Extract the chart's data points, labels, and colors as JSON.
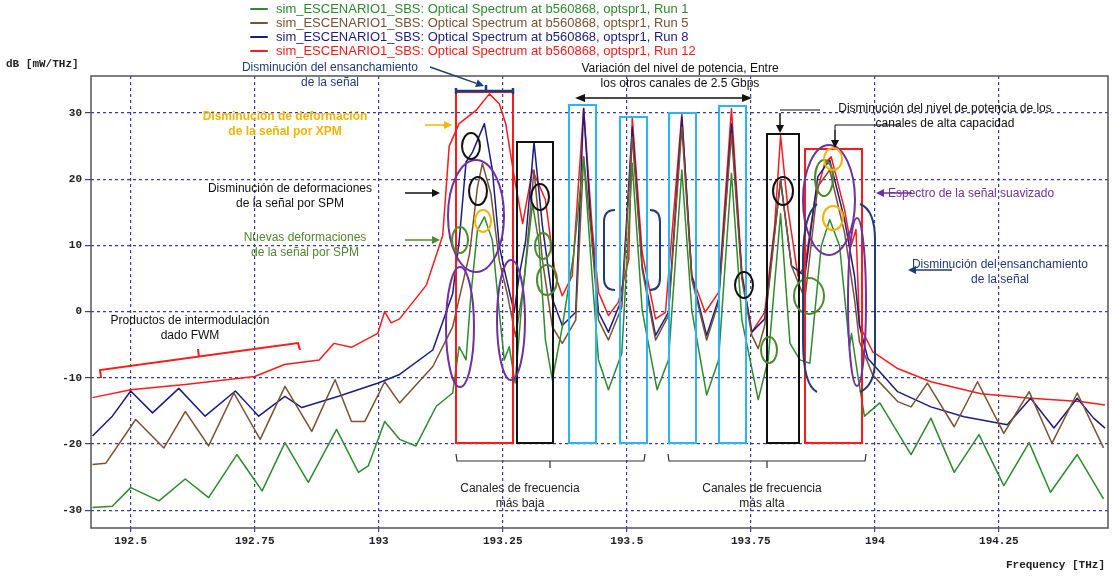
{
  "chart_data": {
    "type": "line",
    "xlabel": "Frequency [THz]",
    "ylabel": "dB [mW/THz]",
    "xlim": [
      192.42,
      194.47
    ],
    "ylim": [
      -32.7,
      35.6
    ],
    "xticks": [
      192.5,
      192.75,
      193,
      193.25,
      193.5,
      193.75,
      194,
      194.25
    ],
    "yticks": [
      -30,
      -20,
      -10,
      0,
      10,
      20,
      30
    ],
    "grid": true,
    "legend": "top left",
    "annotations": [
      "Disminución del ensanchamiento de la señal",
      "Variación del nivel de potencia, Entre los otros canales de 2.5 Gbps",
      "Disminución de deformación de la señal por XPM",
      "Disminución del nivel de potencia de los canales de alta capacidad",
      "Disminución de deformaciones de la señal  por SPM",
      "Espectro de la señal suavizado",
      "Nuevas deformaciones de la señal  por SPM",
      "Disminución del ensanchamiento de la señal",
      "Productos de intermodulación dado FWM",
      "Canales de frecuencia más baja",
      "Canales de frecuencia más alta"
    ],
    "series": [
      {
        "name": "sim_ESCENARIO1_SBS: Optical Spectrum at b560868, optspr1, Run 1",
        "color": "#2e8b2e",
        "x": [
          192.423,
          192.463,
          192.5,
          192.557,
          192.61,
          192.657,
          192.714,
          192.765,
          192.811,
          192.858,
          192.915,
          192.959,
          192.979,
          193.012,
          193.042,
          193.075,
          193.116,
          193.149,
          193.162,
          193.176,
          193.186,
          193.199,
          193.213,
          193.229,
          193.243,
          193.253,
          193.263,
          193.275,
          193.29,
          193.31,
          193.323,
          193.336,
          193.35,
          193.37,
          193.393,
          193.413,
          193.43,
          193.443,
          193.463,
          193.49,
          193.511,
          193.531,
          193.561,
          193.584,
          193.611,
          193.631,
          193.661,
          193.685,
          193.711,
          193.732,
          193.765,
          193.785,
          193.81,
          193.829,
          193.849,
          193.869,
          193.892,
          193.909,
          193.929,
          193.949,
          193.953,
          193.966,
          193.979,
          194.01,
          194.073,
          194.113,
          194.16,
          194.21,
          194.26,
          194.311,
          194.354,
          194.408,
          194.461
        ],
        "values": [
          -29.6,
          -29.4,
          -26.6,
          -28.6,
          -25.3,
          -28.1,
          -21.6,
          -27.1,
          -19.8,
          -25.8,
          -17.8,
          -24.3,
          -23.3,
          -16.6,
          -19.3,
          -20.3,
          -14.3,
          -12.3,
          -5.3,
          -7.3,
          2.7,
          12.3,
          14.3,
          10.8,
          -0.1,
          -7.3,
          -5.3,
          -10.8,
          2.7,
          16.3,
          10.3,
          -4.3,
          -10.3,
          -2.3,
          8.7,
          23.4,
          5.4,
          -7.3,
          -11.8,
          -6.3,
          22.4,
          0.2,
          -11.8,
          -7.3,
          21.4,
          0.2,
          -12.6,
          -7.3,
          20.9,
          -1.3,
          -13.3,
          -7.3,
          14.8,
          -4.8,
          -7.3,
          -7.8,
          9.9,
          13.9,
          9.9,
          -5.3,
          -3.3,
          -9.8,
          -15.8,
          -13.8,
          -21.6,
          -16.1,
          -24.3,
          -18.6,
          -26.3,
          -19.8,
          -27.3,
          -21.6,
          -28.3
        ]
      },
      {
        "name": "sim_ESCENARIO1_SBS: Optical Spectrum at b560868, optspr1, Run 5",
        "color": "#7b5331",
        "x": [
          192.423,
          192.45,
          192.51,
          192.567,
          192.61,
          192.657,
          192.708,
          192.761,
          192.811,
          192.865,
          192.912,
          192.945,
          192.972,
          193.012,
          193.042,
          193.109,
          193.149,
          193.166,
          193.183,
          193.199,
          193.209,
          193.226,
          193.243,
          193.259,
          193.276,
          193.293,
          193.313,
          193.33,
          193.35,
          193.37,
          193.397,
          193.413,
          193.427,
          193.443,
          193.463,
          193.49,
          193.511,
          193.531,
          193.558,
          193.584,
          193.611,
          193.631,
          193.661,
          193.685,
          193.711,
          193.732,
          193.752,
          193.765,
          193.778,
          193.81,
          193.832,
          193.859,
          193.885,
          193.909,
          193.939,
          193.959,
          193.969,
          193.996,
          194.046,
          194.073,
          194.106,
          194.16,
          194.207,
          194.26,
          194.311,
          194.357,
          194.408,
          194.461
        ],
        "values": [
          -23.1,
          -22.9,
          -16.3,
          -20.6,
          -15.1,
          -20.3,
          -12.3,
          -19.3,
          -11.3,
          -18.1,
          -10.3,
          -16.6,
          -16.6,
          -10.6,
          -13.8,
          -8.3,
          -2.3,
          3.2,
          8.7,
          18.8,
          22.4,
          17.8,
          7.7,
          2.7,
          -3.8,
          4.7,
          21.4,
          7.7,
          -2.3,
          -4.8,
          -1.3,
          23.4,
          12.9,
          -1.3,
          -4.3,
          0.7,
          26.4,
          6.4,
          -4.3,
          -0.6,
          27.9,
          4.9,
          -4.3,
          1.4,
          26.9,
          4.9,
          -3.6,
          -5.6,
          -2.1,
          19.9,
          6.9,
          1.9,
          18.9,
          21.4,
          11.9,
          1.9,
          -4.6,
          -9.6,
          -13.6,
          -14.4,
          -10.8,
          -17.4,
          -10.6,
          -18.4,
          -12.1,
          -19.9,
          -12.3,
          -20.6
        ]
      },
      {
        "name": "sim_ESCENARIO1_SBS: Optical Spectrum at b560868, optspr1, Run 8",
        "color": "#1c1c82",
        "x": [
          192.423,
          192.463,
          192.5,
          192.544,
          192.597,
          192.65,
          192.711,
          192.758,
          192.811,
          192.845,
          192.919,
          192.999,
          193.042,
          193.109,
          193.149,
          193.162,
          193.176,
          193.189,
          193.213,
          193.229,
          193.243,
          193.256,
          193.273,
          193.283,
          193.296,
          193.313,
          193.33,
          193.35,
          193.37,
          193.397,
          193.413,
          193.427,
          193.443,
          193.463,
          193.49,
          193.511,
          193.531,
          193.558,
          193.584,
          193.611,
          193.631,
          193.661,
          193.685,
          193.711,
          193.732,
          193.752,
          193.778,
          193.81,
          193.832,
          193.859,
          193.885,
          193.909,
          193.939,
          193.959,
          193.969,
          193.986,
          194.046,
          194.113,
          194.18,
          194.267,
          194.314,
          194.361,
          194.408,
          194.441,
          194.464
        ],
        "values": [
          -18.8,
          -15.8,
          -12,
          -15.3,
          -11.6,
          -15.8,
          -12,
          -15.8,
          -12.8,
          -14.5,
          -12.8,
          -10.8,
          -9.5,
          -5.8,
          2.7,
          10.6,
          22.6,
          24.1,
          28.4,
          21.4,
          9.9,
          5.4,
          -0.1,
          5.4,
          10.6,
          25.6,
          12.9,
          1.9,
          -2.1,
          -0.1,
          30.7,
          13.9,
          -0.1,
          -3.1,
          1.9,
          27.9,
          6.9,
          -3.6,
          -0.1,
          29.4,
          5.4,
          -3.6,
          1.9,
          28.4,
          5.4,
          -3.1,
          -1.1,
          19.9,
          6.9,
          5.4,
          20.4,
          22.9,
          13.9,
          5.4,
          -2.1,
          -7.1,
          -12.1,
          -14.4,
          -15.9,
          -17.1,
          -13.1,
          -17.6,
          -13.1,
          -16.1,
          -17.6
        ]
      },
      {
        "name": "sim_ESCENARIO1_SBS: Optical Spectrum at b560868, optspr1, Run 12",
        "color": "#ff1a1a",
        "x": [
          192.423,
          192.5,
          192.61,
          192.75,
          192.81,
          192.88,
          192.91,
          192.945,
          192.998,
          193.012,
          193.025,
          193.042,
          193.096,
          193.129,
          193.142,
          193.162,
          193.196,
          193.223,
          193.243,
          193.256,
          193.273,
          193.29,
          193.31,
          193.336,
          193.356,
          193.37,
          193.39,
          193.413,
          193.43,
          193.443,
          193.463,
          193.483,
          193.504,
          193.511,
          193.531,
          193.558,
          193.578,
          193.611,
          193.631,
          193.658,
          193.685,
          193.711,
          193.732,
          193.752,
          193.778,
          193.798,
          193.81,
          193.825,
          193.845,
          193.859,
          193.879,
          193.899,
          193.912,
          193.939,
          193.952,
          193.962,
          193.969,
          193.976,
          193.996,
          194.046,
          194.113,
          194.214,
          194.314,
          194.414,
          194.464
        ],
        "values": [
          -13,
          -11.8,
          -11,
          -9.8,
          -8,
          -7.3,
          -4.8,
          -5.4,
          -3.3,
          0,
          -1.7,
          -1.1,
          4,
          11.5,
          25,
          28.4,
          30.4,
          32.9,
          31.4,
          28.4,
          20.4,
          13.3,
          21.4,
          16.9,
          5.4,
          2.4,
          5.4,
          30.7,
          12.9,
          2.9,
          -0.6,
          1.4,
          7.9,
          29.4,
          8.9,
          -1.1,
          -0.1,
          29.9,
          5.4,
          -0.1,
          2.9,
          30.7,
          5.9,
          -3.1,
          -0.1,
          12.9,
          26.6,
          15.4,
          5.4,
          6.9,
          16.9,
          22.4,
          23.4,
          15.4,
          9.9,
          12.4,
          -2.1,
          -3.1,
          -6.1,
          -8.6,
          -10.6,
          -12.4,
          -13.1,
          -13.6,
          -14.1
        ]
      }
    ]
  }
}
